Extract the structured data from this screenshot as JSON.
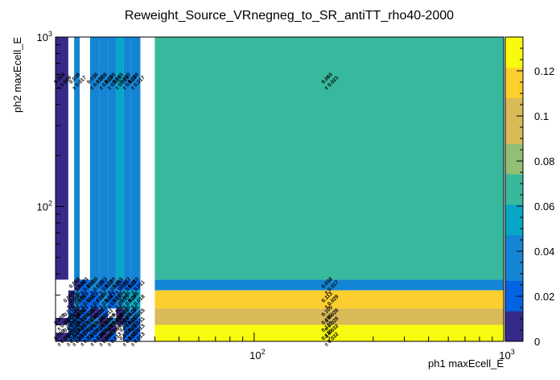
{
  "chart_data": {
    "type": "heatmap",
    "title": "Reweight_Source_VRnegneg_to_SR_antiTT_rho40-2000",
    "xlabel": "ph1 maxEcell_E",
    "ylabel": "ph2 maxEcell_E",
    "x_scale": "log",
    "y_scale": "log",
    "xlim": [
      16,
      1000
    ],
    "ylim": [
      16,
      1000
    ],
    "x_ticks": [
      {
        "value": 100,
        "base": "10",
        "exp": "2"
      },
      {
        "value": 1000,
        "base": "10",
        "exp": "3"
      }
    ],
    "y_ticks": [
      {
        "value": 100,
        "base": "10",
        "exp": "2"
      },
      {
        "value": 1000,
        "base": "10",
        "exp": "3"
      }
    ],
    "x_edges": [
      16,
      18,
      19,
      20,
      22,
      24,
      26,
      28,
      30,
      32,
      35,
      40,
      1000
    ],
    "y_edges": [
      16,
      18,
      20,
      22,
      25,
      32,
      37,
      1000
    ],
    "color_scale": {
      "min": 0,
      "max": 0.135,
      "ticks": [
        "0",
        "0.02",
        "0.04",
        "0.06",
        "0.08",
        "0.1",
        "0.12"
      ],
      "colors": [
        "#352a87",
        "#0363e1",
        "#1485d4",
        "#06a7c6",
        "#38b99e",
        "#92bf73",
        "#d9ba56",
        "#fcce2e",
        "#f9fb0e"
      ]
    },
    "cells": [
      {
        "ix": 0,
        "iy": 6,
        "value": 0.008,
        "label": "0.008",
        "err": "± 0.008"
      },
      {
        "ix": 2,
        "iy": 6,
        "value": 0.038,
        "label": "0.038",
        "err": "± 0.017"
      },
      {
        "ix": 4,
        "iy": 6,
        "value": 0.038,
        "label": "0.038",
        "err": "± 0.017"
      },
      {
        "ix": 5,
        "iy": 6,
        "value": 0.038,
        "label": "0.038",
        "err": "± 0.013"
      },
      {
        "ix": 6,
        "iy": 6,
        "value": 0.03,
        "label": "0.030",
        "err": "± 0.013"
      },
      {
        "ix": 7,
        "iy": 6,
        "value": 0.045,
        "label": "0.045",
        "err": "± 0.015"
      },
      {
        "ix": 8,
        "iy": 6,
        "value": 0.03,
        "label": "0.030",
        "err": "± 0.013"
      },
      {
        "ix": 9,
        "iy": 6,
        "value": 0.038,
        "label": "0.038",
        "err": "± 0.017"
      },
      {
        "ix": 11,
        "iy": 6,
        "value": 0.06,
        "label": "0.060",
        "err": "± 0.021"
      },
      {
        "ix": 2,
        "iy": 5,
        "value": 0.008,
        "label": "0.008",
        "err": "± 0.008"
      },
      {
        "ix": 3,
        "iy": 5,
        "value": 0.023,
        "label": "0.023",
        "err": "± 0.013"
      },
      {
        "ix": 4,
        "iy": 5,
        "value": 0.03,
        "label": "0.030",
        "err": "± 0.015"
      },
      {
        "ix": 5,
        "iy": 5,
        "value": 0.023,
        "label": "0.023",
        "err": "± 0.013"
      },
      {
        "ix": 6,
        "iy": 5,
        "value": 0.03,
        "label": "0.030",
        "err": "± 0.015"
      },
      {
        "ix": 7,
        "iy": 5,
        "value": 0.015,
        "label": "0.015",
        "err": "± 0.011"
      },
      {
        "ix": 8,
        "iy": 5,
        "value": 0.023,
        "label": "0.023",
        "err": "± 0.013"
      },
      {
        "ix": 9,
        "iy": 5,
        "value": 0.023,
        "label": "0.023",
        "err": "± 0.011"
      },
      {
        "ix": 11,
        "iy": 5,
        "value": 0.038,
        "label": "0.038",
        "err": "± 0.017"
      },
      {
        "ix": 1,
        "iy": 4,
        "value": 0.008,
        "label": "0.008",
        "err": "± 0.008"
      },
      {
        "ix": 2,
        "iy": 4,
        "value": 0.03,
        "label": "0.030",
        "err": "± 0.015"
      },
      {
        "ix": 3,
        "iy": 4,
        "value": 0.023,
        "label": "0.023",
        "err": "± 0.013"
      },
      {
        "ix": 4,
        "iy": 4,
        "value": 0.023,
        "label": "0.023",
        "err": "± 0.013"
      },
      {
        "ix": 5,
        "iy": 4,
        "value": 0.03,
        "label": "0.030",
        "err": "± 0.015"
      },
      {
        "ix": 6,
        "iy": 4,
        "value": 0.023,
        "label": "0.023",
        "err": "± 0.013"
      },
      {
        "ix": 7,
        "iy": 4,
        "value": 0.03,
        "label": "0.030",
        "err": "± 0.015"
      },
      {
        "ix": 8,
        "iy": 4,
        "value": 0.045,
        "label": "0.045",
        "err": "± 0.018"
      },
      {
        "ix": 9,
        "iy": 4,
        "value": 0.045,
        "label": "0.045",
        "err": "± 0.018"
      },
      {
        "ix": 11,
        "iy": 4,
        "value": 0.113,
        "label": "0.113",
        "err": "± 0.029"
      },
      {
        "ix": 1,
        "iy": 3,
        "value": 0.015,
        "label": "0.015",
        "err": "± 0.011"
      },
      {
        "ix": 2,
        "iy": 3,
        "value": 0.008,
        "label": "0.008",
        "err": "± 0.008"
      },
      {
        "ix": 3,
        "iy": 3,
        "value": 0.023,
        "label": "0.023",
        "err": "± 0.013"
      },
      {
        "ix": 4,
        "iy": 3,
        "value": 0.008,
        "label": "0.008",
        "err": "± 0.008"
      },
      {
        "ix": 5,
        "iy": 3,
        "value": 0.015,
        "label": "0.015",
        "err": "± 0.011"
      },
      {
        "ix": 7,
        "iy": 3,
        "value": 0.008,
        "label": "0.008",
        "err": "± 0.008"
      },
      {
        "ix": 8,
        "iy": 3,
        "value": 0.03,
        "label": "0.030",
        "err": "± 0.015"
      },
      {
        "ix": 9,
        "iy": 3,
        "value": 0.03,
        "label": "0.030",
        "err": "± 0.015"
      },
      {
        "ix": 11,
        "iy": 3,
        "value": 0.105,
        "label": "0.105",
        "err": "± 0.028"
      },
      {
        "ix": 0,
        "iy": 2,
        "value": 0.008,
        "label": "0.008",
        "err": "± 0.008"
      },
      {
        "ix": 1,
        "iy": 2,
        "value": 0.023,
        "label": "0.023",
        "err": "± 0.013"
      },
      {
        "ix": 2,
        "iy": 2,
        "value": 0.015,
        "label": "0.015",
        "err": "± 0.011"
      },
      {
        "ix": 3,
        "iy": 2,
        "value": 0.015,
        "label": "0.015",
        "err": "± 0.011"
      },
      {
        "ix": 4,
        "iy": 2,
        "value": 0.038,
        "label": "0.038",
        "err": "± 0.017"
      },
      {
        "ix": 5,
        "iy": 2,
        "value": 0.008,
        "label": "0.008",
        "err": "± 0.008"
      },
      {
        "ix": 6,
        "iy": 2,
        "value": 0.03,
        "label": "0.030",
        "err": "± 0.015"
      },
      {
        "ix": 7,
        "iy": 2,
        "value": 0.008,
        "label": "0.008",
        "err": "± 0.008"
      },
      {
        "ix": 8,
        "iy": 2,
        "value": 0.015,
        "label": "0.015",
        "err": "± 0.011"
      },
      {
        "ix": 9,
        "iy": 2,
        "value": 0.015,
        "label": "0.015",
        "err": "± 0.011"
      },
      {
        "ix": 11,
        "iy": 2,
        "value": 0.105,
        "label": "0.105",
        "err": "± 0.028"
      },
      {
        "ix": 1,
        "iy": 1,
        "value": 0.023,
        "label": "0.023",
        "err": "± 0.013"
      },
      {
        "ix": 2,
        "iy": 1,
        "value": 0.015,
        "label": "0.015",
        "err": "± 0.011"
      },
      {
        "ix": 3,
        "iy": 1,
        "value": 0.023,
        "label": "0.023",
        "err": "± 0.013"
      },
      {
        "ix": 4,
        "iy": 1,
        "value": 0.015,
        "label": "0.015",
        "err": "± 0.011"
      },
      {
        "ix": 5,
        "iy": 1,
        "value": 0.023,
        "label": "0.023",
        "err": "± 0.013"
      },
      {
        "ix": 6,
        "iy": 1,
        "value": 0.008,
        "label": "0.008",
        "err": "± 0.008"
      },
      {
        "ix": 8,
        "iy": 1,
        "value": 0.023,
        "label": "0.023",
        "err": "± 0.013"
      },
      {
        "ix": 9,
        "iy": 1,
        "value": 0.023,
        "label": "0.023",
        "err": "± 0.013"
      },
      {
        "ix": 11,
        "iy": 1,
        "value": 0.135,
        "label": "0.135",
        "err": "± 0.032"
      },
      {
        "ix": 0,
        "iy": 0,
        "value": 0.008,
        "label": "0.008",
        "err": "± 0.008"
      },
      {
        "ix": 1,
        "iy": 0,
        "value": 0.023,
        "label": "0.023",
        "err": "± 0.013"
      },
      {
        "ix": 2,
        "iy": 0,
        "value": 0.023,
        "label": "0.023",
        "err": "± 0.013"
      },
      {
        "ix": 3,
        "iy": 0,
        "value": 0.015,
        "label": "0.015",
        "err": "± 0.011"
      },
      {
        "ix": 4,
        "iy": 0,
        "value": 0.015,
        "label": "0.015",
        "err": "± 0.011"
      },
      {
        "ix": 5,
        "iy": 0,
        "value": 0.008,
        "label": "0.008",
        "err": "± 0.008"
      },
      {
        "ix": 6,
        "iy": 0,
        "value": 0.023,
        "label": "0.023",
        "err": "± 0.013"
      },
      {
        "ix": 8,
        "iy": 0,
        "value": 0.023,
        "label": "0.023",
        "err": "± 0.013"
      },
      {
        "ix": 9,
        "iy": 0,
        "value": 0.023,
        "label": "0.023",
        "err": "± 0.013"
      },
      {
        "ix": 11,
        "iy": 0,
        "value": 0.135,
        "label": "0.135",
        "err": "± 0.032"
      }
    ]
  }
}
